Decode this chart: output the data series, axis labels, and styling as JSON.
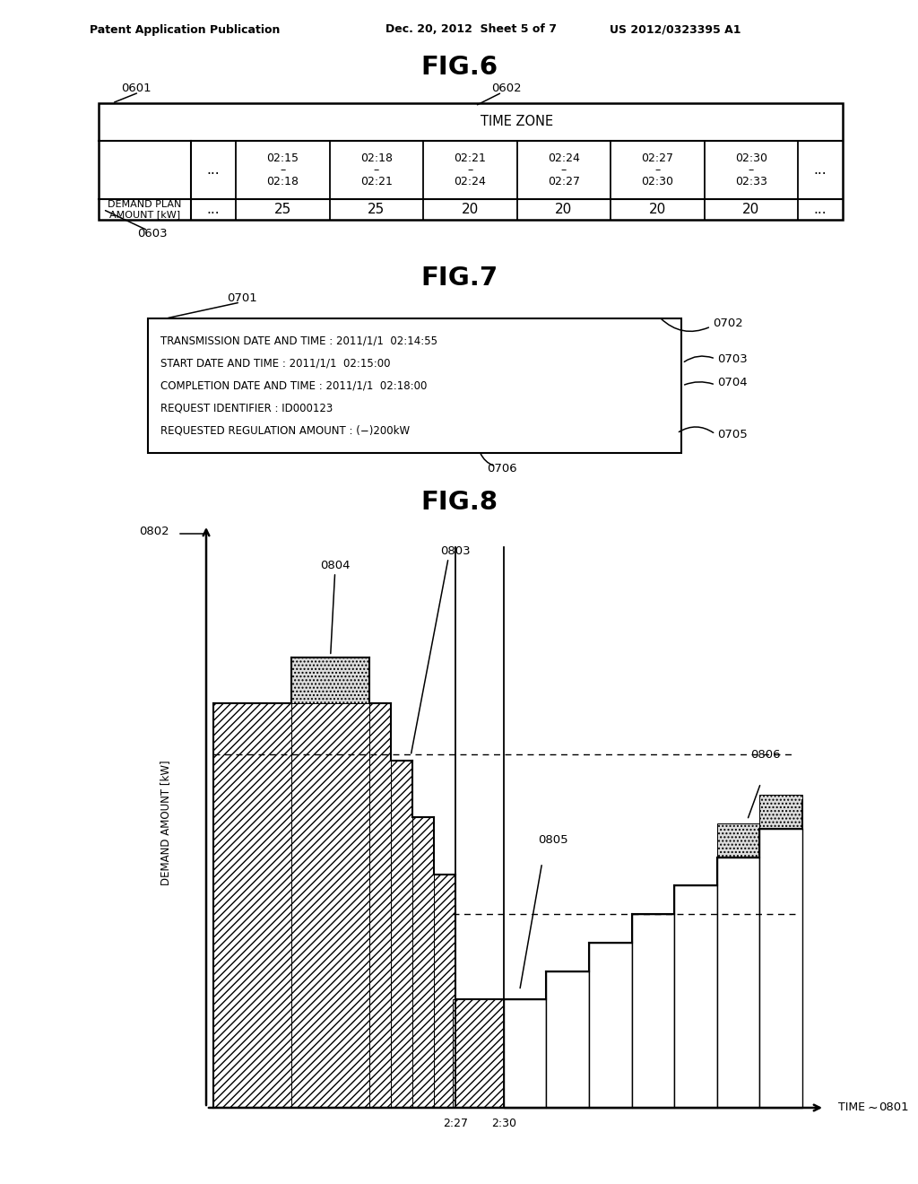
{
  "bg_color": "#ffffff",
  "header_left": "Patent Application Publication",
  "header_mid": "Dec. 20, 2012  Sheet 5 of 7",
  "header_right": "US 2012/0323395 A1",
  "fig6_title": "FIG.6",
  "fig6_label0601": "0601",
  "fig6_label0602": "0602",
  "fig6_label0603": "0603",
  "fig6_timezone_header": "TIME ZONE",
  "fig6_row1_label": "DEMAND PLAN\nAMOUNT [kW]",
  "fig6_time_cols": [
    "02:15",
    "02:18",
    "02:21",
    "02:24",
    "02:27",
    "02:30"
  ],
  "fig6_time_cols2": [
    "02:18",
    "02:21",
    "02:24",
    "02:27",
    "02:30",
    "02:33"
  ],
  "fig6_values": [
    "25",
    "25",
    "20",
    "20",
    "20",
    "20"
  ],
  "fig7_title": "FIG.7",
  "fig7_label0701": "0701",
  "fig7_label0702": "0702",
  "fig7_label0703": "0703",
  "fig7_label0704": "0704",
  "fig7_label0705": "0705",
  "fig7_label0706": "0706",
  "fig7_line1": "TRANSMISSION DATE AND TIME : 2011/1/1  02:14:55",
  "fig7_line2": "START DATE AND TIME : 2011/1/1  02:15:00",
  "fig7_line3": "COMPLETION DATE AND TIME : 2011/1/1  02:18:00",
  "fig7_line4": "REQUEST IDENTIFIER : ID000123",
  "fig7_line5": "REQUESTED REGULATION AMOUNT : (−)200kW",
  "fig8_title": "FIG.8",
  "fig8_label0801": "0801",
  "fig8_label0802": "0802",
  "fig8_label0803": "0803",
  "fig8_label0804": "0804",
  "fig8_label0805": "0805",
  "fig8_label0806": "0806",
  "fig8_ylabel": "DEMAND AMOUNT [kW]",
  "fig8_xtick1": "2:27",
  "fig8_xtick2": "2:30",
  "fig8_time_label": "TIME",
  "fig8_tilde": "∼"
}
